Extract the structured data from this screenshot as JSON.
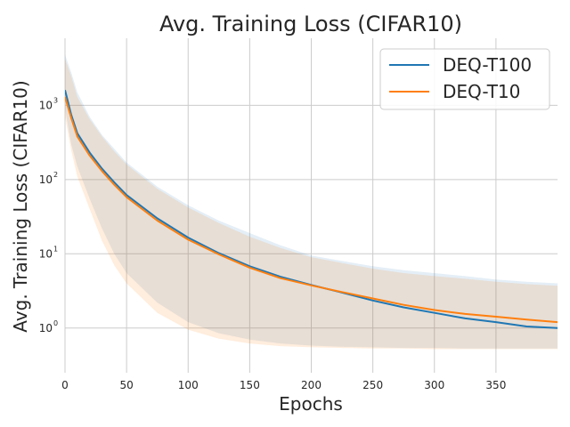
{
  "chart_data": {
    "type": "line",
    "title": "Avg. Training Loss (CIFAR10)",
    "xlabel": "Epochs",
    "ylabel": "Avg. Training Loss (CIFAR10)",
    "xlim": [
      0,
      400
    ],
    "ylim": [
      0.25,
      8000
    ],
    "yscale": "log",
    "grid": true,
    "legend": "top-right",
    "xticks": [
      0,
      50,
      100,
      150,
      200,
      250,
      300,
      350
    ],
    "xtick_labels": [
      "0",
      "50",
      "100",
      "150",
      "200",
      "250",
      "300",
      "350"
    ],
    "yticks": [
      1,
      10,
      100,
      1000
    ],
    "ytick_labels": [
      {
        "base": "10",
        "exp": "0"
      },
      {
        "base": "10",
        "exp": "1"
      },
      {
        "base": "10",
        "exp": "2"
      },
      {
        "base": "10",
        "exp": "3"
      }
    ],
    "x": [
      0,
      5,
      10,
      20,
      30,
      40,
      50,
      75,
      100,
      125,
      150,
      175,
      200,
      225,
      250,
      275,
      300,
      325,
      350,
      375,
      400
    ],
    "series": [
      {
        "name": "DEQ-T100",
        "color": "#1f77b4",
        "values": [
          1600,
          750,
          420,
          230,
          140,
          92,
          62,
          30,
          16.5,
          10.2,
          6.8,
          4.9,
          3.8,
          3.0,
          2.35,
          1.9,
          1.6,
          1.35,
          1.2,
          1.05,
          1.0
        ],
        "band_low": [
          900,
          300,
          150,
          55,
          22,
          10,
          5.5,
          2.2,
          1.2,
          0.85,
          0.7,
          0.62,
          0.58,
          0.56,
          0.55,
          0.54,
          0.54,
          0.53,
          0.53,
          0.53,
          0.53
        ],
        "band_high": [
          4800,
          2800,
          1500,
          700,
          400,
          260,
          170,
          80,
          45,
          28,
          19,
          13,
          9.5,
          8.0,
          6.8,
          6.0,
          5.5,
          5.0,
          4.5,
          4.2,
          4.0
        ]
      },
      {
        "name": "DEQ-T10",
        "color": "#ff7f0e",
        "values": [
          1300,
          680,
          380,
          210,
          130,
          85,
          58,
          28,
          15.5,
          9.8,
          6.5,
          4.7,
          3.75,
          3.05,
          2.5,
          2.05,
          1.75,
          1.55,
          1.42,
          1.3,
          1.2
        ],
        "band_low": [
          700,
          250,
          110,
          40,
          15,
          7,
          4,
          1.6,
          0.95,
          0.72,
          0.62,
          0.57,
          0.55,
          0.54,
          0.53,
          0.53,
          0.52,
          0.52,
          0.52,
          0.52,
          0.52
        ],
        "band_high": [
          4200,
          2500,
          1300,
          650,
          380,
          240,
          160,
          75,
          42,
          26,
          17,
          12,
          9.0,
          7.5,
          6.3,
          5.5,
          5.0,
          4.6,
          4.2,
          3.9,
          3.7
        ]
      }
    ]
  }
}
